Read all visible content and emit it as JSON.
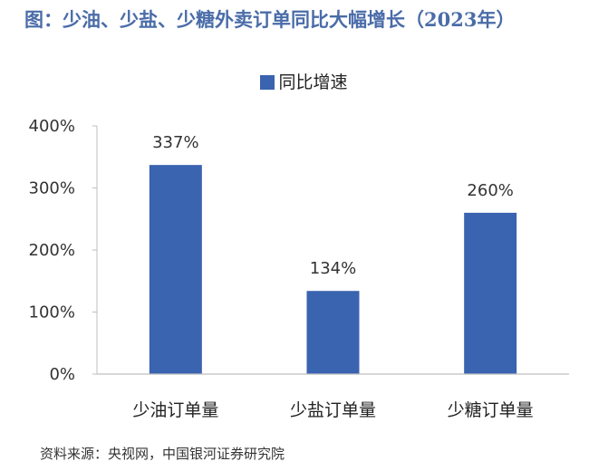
{
  "figure_title": "图：少油、少盐、少糖外卖订单同比大幅增长（2023年）",
  "source_note": "资料来源：央视网，中国银河证券研究院",
  "chart_data": {
    "type": "bar",
    "title": "",
    "categories": [
      "少油订单量",
      "少盐订单量",
      "少糖订单量"
    ],
    "series": [
      {
        "name": "同比增速",
        "values": [
          337,
          134,
          260
        ],
        "labels": [
          "337%",
          "134%",
          "260%"
        ]
      }
    ],
    "xlabel": "",
    "ylabel": "",
    "ylim": [
      0,
      400
    ],
    "yticks": [
      {
        "value": 0,
        "label": "0%"
      },
      {
        "value": 100,
        "label": "100%"
      },
      {
        "value": 200,
        "label": "200%"
      },
      {
        "value": 300,
        "label": "300%"
      },
      {
        "value": 400,
        "label": "400%"
      }
    ],
    "grid": false,
    "legend_position": "top-center",
    "colors": {
      "bar": "#3a63b0",
      "title": "#4a6ca8",
      "axis": "#bfbfbf"
    }
  }
}
